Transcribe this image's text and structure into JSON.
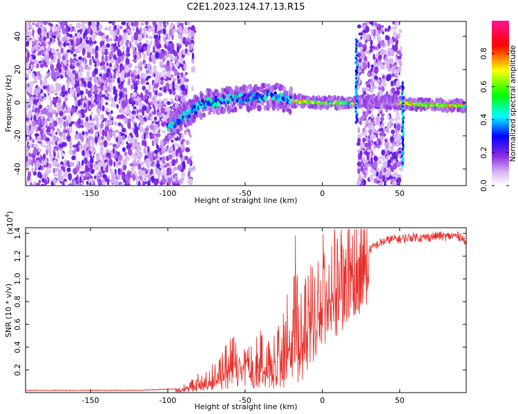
{
  "figure_title": "C2E1.2023.124.17.13.R15",
  "chart_data": [
    {
      "type": "heatmap",
      "title": "C2E1.2023.124.17.13.R15",
      "xlabel": "Height of straight line (km)",
      "ylabel": "Frequency (Hz)",
      "xlim": [
        -192,
        93
      ],
      "ylim": [
        -50,
        49
      ],
      "x_ticks": [
        -150,
        -100,
        -50,
        0,
        50
      ],
      "y_ticks": [
        -40,
        -20,
        0,
        20,
        40
      ],
      "colorbar": {
        "label": "Normalized spectral amplitude",
        "range": [
          0,
          1
        ],
        "ticks": [
          0.0,
          0.2,
          0.4,
          0.6,
          0.8
        ],
        "tick_labels": [
          "0.0",
          "0.2",
          "0.4",
          "0.6",
          "0.8"
        ],
        "colors": [
          "#ffffff",
          "#8a2be2",
          "#0000ff",
          "#00ffff",
          "#00ff00",
          "#ffff00",
          "#ff0000",
          "#ff1493"
        ]
      },
      "features": [
        {
          "name": "broadband noise",
          "x_range": [
            -192,
            -88
          ],
          "y_range": [
            -50,
            49
          ],
          "amplitude": 0.1
        },
        {
          "name": "signal trend",
          "points": [
            [
              -100,
              -15
            ],
            [
              -85,
              -5
            ],
            [
              -75,
              0
            ],
            [
              -60,
              2
            ],
            [
              -45,
              3
            ],
            [
              -30,
              4
            ],
            [
              -20,
              1
            ],
            [
              0,
              0
            ],
            [
              20,
              0
            ],
            [
              22,
              1
            ],
            [
              50,
              0
            ],
            [
              60,
              -1
            ],
            [
              93,
              -2
            ]
          ],
          "amplitude": 0.6
        },
        {
          "name": "vertical noise band",
          "x_range": [
            23,
            51
          ],
          "y_range": [
            -50,
            49
          ],
          "amplitude": 0.12
        },
        {
          "name": "spike",
          "x": 22,
          "y_range": [
            -12,
            38
          ],
          "amplitude": 0.5
        },
        {
          "name": "spike",
          "x": 52,
          "y_range": [
            -38,
            12
          ],
          "amplitude": 0.5
        }
      ]
    },
    {
      "type": "line",
      "xlabel": "Height of straight line (km)",
      "ylabel": "SNR (10 * v/v)",
      "y_multiplier": "(x10",
      "y_multiplier_exp": "4",
      "y_multiplier_close": ")",
      "xlim": [
        -192,
        93
      ],
      "ylim": [
        0,
        1.45
      ],
      "x_ticks": [
        -150,
        -100,
        -50,
        0,
        50
      ],
      "y_ticks": [
        0.2,
        0.4,
        0.6,
        0.8,
        1.0,
        1.2,
        1.4
      ],
      "y_tick_labels": [
        "0.2",
        "0.4",
        "0.6",
        "0.8",
        "1.0",
        "1.2",
        "1.4"
      ],
      "series": [
        {
          "color": "#e8312c",
          "x": [
            -192,
            -180,
            -170,
            -160,
            -150,
            -140,
            -130,
            -120,
            -110,
            -100,
            -95,
            -90,
            -85,
            -80,
            -75,
            -70,
            -65,
            -60,
            -55,
            -50,
            -45,
            -40,
            -35,
            -30,
            -25,
            -20,
            -18,
            -15,
            -10,
            -5,
            0,
            5,
            10,
            15,
            20,
            25,
            30,
            35,
            40,
            45,
            50,
            55,
            60,
            65,
            70,
            75,
            80,
            85,
            90,
            93
          ],
          "y": [
            0.02,
            0.02,
            0.02,
            0.02,
            0.02,
            0.02,
            0.02,
            0.02,
            0.025,
            0.03,
            0.03,
            0.04,
            0.06,
            0.09,
            0.12,
            0.15,
            0.2,
            0.25,
            0.3,
            0.3,
            0.28,
            0.3,
            0.3,
            0.32,
            0.4,
            0.6,
            0.75,
            0.45,
            0.55,
            0.7,
            0.9,
            0.95,
            1.0,
            1.05,
            1.15,
            1.2,
            1.25,
            1.3,
            1.33,
            1.35,
            1.35,
            1.36,
            1.37,
            1.36,
            1.37,
            1.38,
            1.37,
            1.38,
            1.37,
            1.3
          ]
        }
      ]
    }
  ]
}
